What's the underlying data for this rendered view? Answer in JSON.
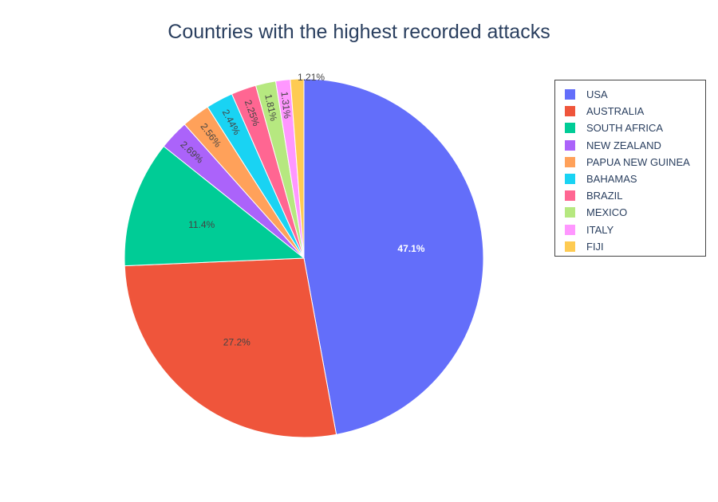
{
  "chart_data": {
    "type": "pie",
    "title": "Countries with the highest recorded attacks",
    "legend_position": "right",
    "slices": [
      {
        "label": "USA",
        "percent": 47.1,
        "percent_text": "47.1%",
        "color": "#636efa"
      },
      {
        "label": "AUSTRALIA",
        "percent": 27.2,
        "percent_text": "27.2%",
        "color": "#ef553b"
      },
      {
        "label": "SOUTH AFRICA",
        "percent": 11.4,
        "percent_text": "11.4%",
        "color": "#00cc96"
      },
      {
        "label": "NEW ZEALAND",
        "percent": 2.69,
        "percent_text": "2.69%",
        "color": "#ab63fa"
      },
      {
        "label": "PAPUA NEW GUINEA",
        "percent": 2.56,
        "percent_text": "2.56%",
        "color": "#ffa15a"
      },
      {
        "label": "BAHAMAS",
        "percent": 2.44,
        "percent_text": "2.44%",
        "color": "#19d3f3"
      },
      {
        "label": "BRAZIL",
        "percent": 2.25,
        "percent_text": "2.25%",
        "color": "#ff6692"
      },
      {
        "label": "MEXICO",
        "percent": 1.81,
        "percent_text": "1.81%",
        "color": "#b6e880"
      },
      {
        "label": "ITALY",
        "percent": 1.31,
        "percent_text": "1.31%",
        "color": "#ff97ff"
      },
      {
        "label": "FIJI",
        "percent": 1.21,
        "percent_text": "1.21%",
        "color": "#fecb52"
      }
    ]
  }
}
